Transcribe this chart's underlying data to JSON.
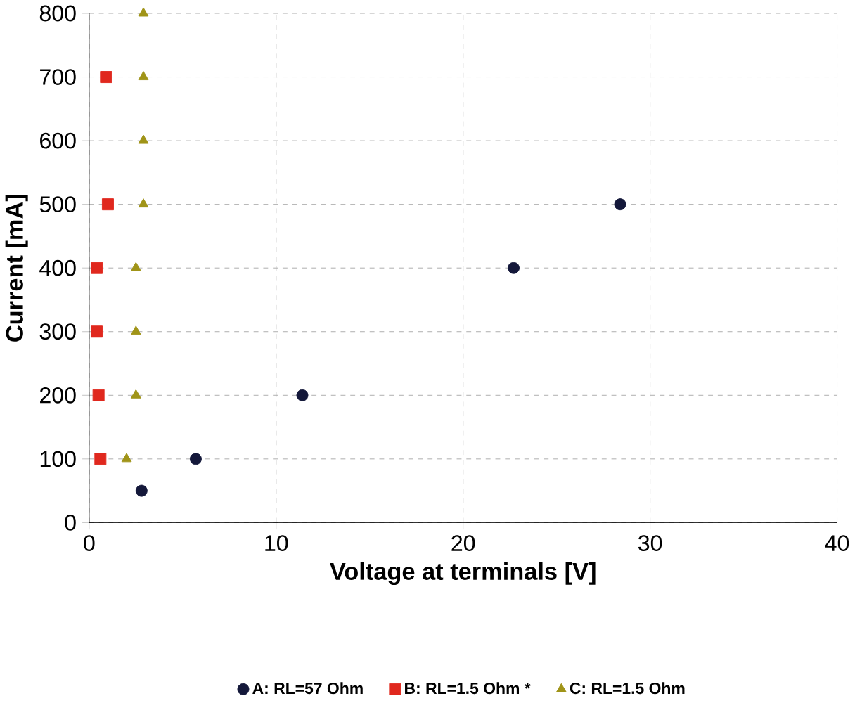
{
  "chart_data": {
    "type": "scatter",
    "xlabel": "Voltage at terminals [V]",
    "ylabel": "Current [mA]",
    "series": [
      {
        "name": "A: RL=57 Ohm",
        "color": "#14183a",
        "marker": "circle",
        "x": [
          2.8,
          5.7,
          11.4,
          22.7,
          28.4
        ],
        "values": [
          50,
          100,
          200,
          400,
          500
        ]
      },
      {
        "name": "B: RL=1.5 Ohm *",
        "color": "#e0281e",
        "marker": "square",
        "x": [
          0.6,
          0.5,
          0.4,
          0.4,
          1.0,
          0.9
        ],
        "values": [
          100,
          200,
          300,
          400,
          500,
          700
        ]
      },
      {
        "name": "C: RL=1.5 Ohm",
        "color": "#a09418",
        "marker": "triangle",
        "x": [
          2.0,
          2.5,
          2.5,
          2.5,
          2.9,
          2.9,
          2.9,
          2.9
        ],
        "values": [
          100,
          200,
          300,
          400,
          500,
          600,
          700,
          800
        ]
      }
    ],
    "xlim": [
      0,
      40
    ],
    "xticks": [
      0,
      10,
      20,
      30,
      40
    ],
    "ylim": [
      0,
      800
    ],
    "yticks": [
      0,
      100,
      200,
      300,
      400,
      500,
      600,
      700,
      800
    ],
    "grid": true,
    "legend": "bottom"
  }
}
